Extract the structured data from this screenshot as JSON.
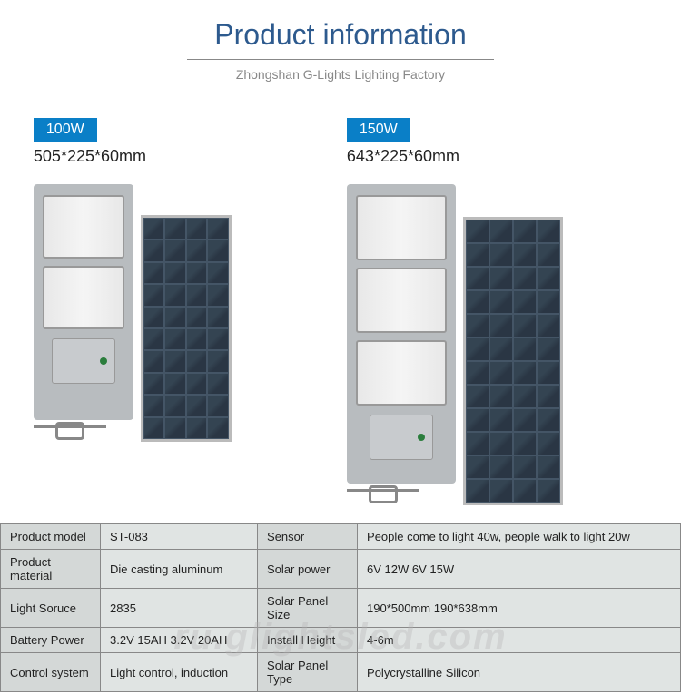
{
  "header": {
    "title": "Product information",
    "subtitle": "Zhongshan G-Lights Lighting Factory"
  },
  "products": [
    {
      "wattage": "100W",
      "dimensions": "505*225*60mm",
      "led_panels": 2,
      "solar_cells": 40
    },
    {
      "wattage": "150W",
      "dimensions": "643*225*60mm",
      "led_panels": 3,
      "solar_cells": 48
    }
  ],
  "specs": [
    {
      "l1": "Product model",
      "v1": "ST-083",
      "l2": "Sensor",
      "v2": "People come to light 40w, people walk to light 20w"
    },
    {
      "l1": "Product material",
      "v1": "Die casting aluminum",
      "l2": "Solar power",
      "v2": "6V 12W    6V 15W"
    },
    {
      "l1": "Light Soruce",
      "v1": "2835",
      "l2": "Solar Panel Size",
      "v2": "190*500mm    190*638mm"
    },
    {
      "l1": "Battery Power",
      "v1": "3.2V 15AH  3.2V 20AH",
      "l2": "Install Height",
      "v2": "4-6m"
    },
    {
      "l1": "Control system",
      "v1": " Light control, induction",
      "l2": "Solar Panel Type",
      "v2": " Polycrystalline Silicon"
    }
  ],
  "watermark": "ru.glightsled.com",
  "colors": {
    "title": "#2d5a8e",
    "subtitle": "#888888",
    "badge_bg": "#0a7fc7",
    "badge_fg": "#ffffff",
    "table_label_bg": "#d4d8d7",
    "table_cell_bg": "#e0e4e3",
    "table_border": "#888888",
    "lamp_body": "#b8bcbf",
    "solar_body": "#2d3a4a"
  }
}
